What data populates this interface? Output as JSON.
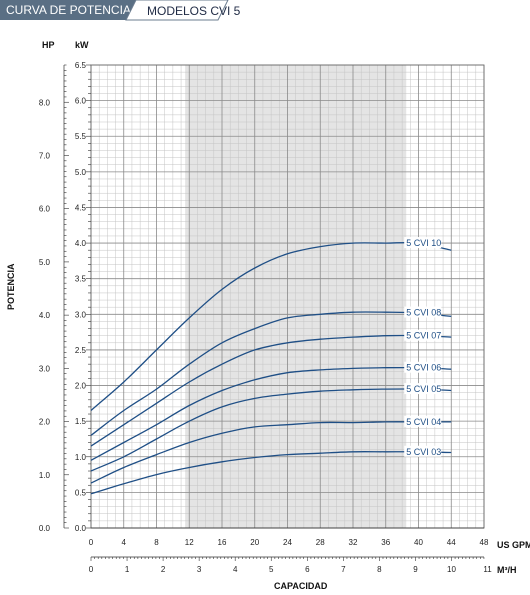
{
  "header": {
    "title": "CURVA DE POTENCIA",
    "subtitle": "MODELOS CVI 5",
    "title_bg": "#5a6f84"
  },
  "chart_data": {
    "type": "line",
    "ylabel": "POTENCIA",
    "xlabel": "CAPACIDAD",
    "hp_axis_title": "HP",
    "kw_axis_title": "kW",
    "x_unit_primary": "US GPM",
    "x_unit_secondary": "M³/H",
    "xlim": [
      0,
      48
    ],
    "ylim_kw": [
      0,
      6.5
    ],
    "ylim_hp": [
      0,
      8.7
    ],
    "x_ticks_gpm": [
      "0",
      "4",
      "8",
      "12",
      "16",
      "20",
      "24",
      "28",
      "32",
      "36",
      "40",
      "44",
      "48"
    ],
    "x_ticks_m3h": [
      "0",
      "1",
      "2",
      "3",
      "4",
      "5",
      "6",
      "7",
      "8",
      "9",
      "10",
      "11"
    ],
    "kw_ticks": [
      "0.0",
      "0.5",
      "1.0",
      "1.5",
      "2.0",
      "2.5",
      "3.0",
      "3.5",
      "4.0",
      "4.5",
      "5.0",
      "5.5",
      "6.0",
      "6.5"
    ],
    "hp_ticks": [
      "0.0",
      "1.0",
      "2.0",
      "3.0",
      "4.0",
      "5.0",
      "6.0",
      "7.0",
      "8.0"
    ],
    "shaded_range_gpm": [
      11.5,
      38.5
    ],
    "grid": true,
    "line_color": "#1f4f86",
    "x": [
      0,
      4,
      8,
      12,
      16,
      20,
      24,
      28,
      32,
      36,
      40,
      44
    ],
    "series": [
      {
        "name": "5 CVI 10",
        "values": [
          1.65,
          2.05,
          2.5,
          2.95,
          3.35,
          3.65,
          3.85,
          3.95,
          4.0,
          4.0,
          4.0,
          3.9
        ]
      },
      {
        "name": "5 CVI 08",
        "values": [
          1.3,
          1.65,
          1.95,
          2.3,
          2.6,
          2.8,
          2.95,
          3.0,
          3.03,
          3.03,
          3.02,
          2.97
        ]
      },
      {
        "name": "5 CVI 07",
        "values": [
          1.15,
          1.45,
          1.75,
          2.05,
          2.3,
          2.5,
          2.6,
          2.65,
          2.68,
          2.7,
          2.7,
          2.68
        ]
      },
      {
        "name": "5 CVI 06",
        "values": [
          0.95,
          1.2,
          1.45,
          1.72,
          1.93,
          2.08,
          2.18,
          2.22,
          2.24,
          2.25,
          2.25,
          2.23
        ]
      },
      {
        "name": "5 CVI 05",
        "values": [
          0.8,
          1.0,
          1.25,
          1.5,
          1.7,
          1.82,
          1.88,
          1.92,
          1.94,
          1.95,
          1.95,
          1.93
        ]
      },
      {
        "name": "5 CVI 04",
        "values": [
          0.63,
          0.85,
          1.03,
          1.2,
          1.33,
          1.42,
          1.45,
          1.48,
          1.48,
          1.49,
          1.49,
          1.49
        ]
      },
      {
        "name": "5 CVI 03",
        "values": [
          0.48,
          0.62,
          0.75,
          0.85,
          0.93,
          0.99,
          1.03,
          1.05,
          1.07,
          1.07,
          1.07,
          1.06
        ]
      }
    ]
  }
}
